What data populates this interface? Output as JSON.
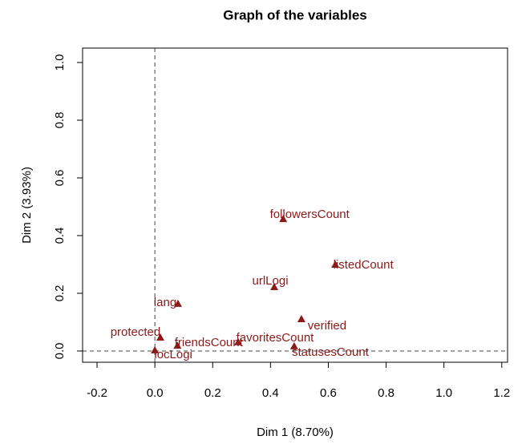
{
  "chart_data": {
    "type": "scatter",
    "title": "Graph of the variables",
    "xlabel": "Dim 1 (8.70%)",
    "ylabel": "Dim 2 (3.93%)",
    "color": "#8b1a1a",
    "series": [
      {
        "name": null,
        "color": "#8b1a1a",
        "labels": [
          "followersCount",
          "listedCount",
          "urlLogi",
          "lang",
          "verified",
          "protected",
          "friendsCount",
          "favoritesCount",
          "statusesCount",
          "locLogi"
        ],
        "x": [
          0.444,
          0.624,
          0.413,
          0.08,
          0.507,
          0.019,
          0.078,
          0.288,
          0.482,
          0.0
        ],
        "values": [
          0.458,
          0.3,
          0.222,
          0.164,
          0.111,
          0.047,
          0.019,
          0.031,
          0.017,
          0.003
        ]
      }
    ],
    "xlim": [
      -0.25,
      1.22
    ],
    "ylim": [
      -0.039,
      1.05
    ],
    "xticks": [
      -0.2,
      {
        "value": 0,
        "label": "0.0"
      },
      0.2,
      0.4,
      0.6,
      0.8,
      {
        "value": 1,
        "label": "1.0"
      },
      1.2
    ],
    "yticks": [
      {
        "value": 0,
        "label": "0.0"
      },
      0.2,
      0.4,
      0.6,
      0.8,
      {
        "value": 1,
        "label": "1.0"
      }
    ],
    "reference_lines": {
      "x": 0,
      "y": 0
    }
  }
}
